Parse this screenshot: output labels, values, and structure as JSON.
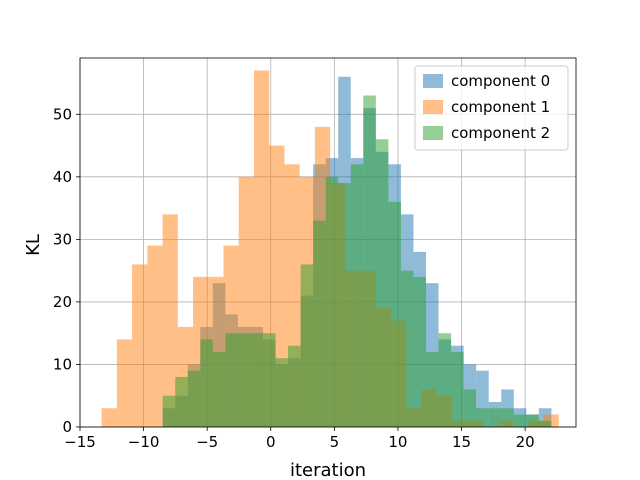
{
  "chart_data": {
    "type": "histogram",
    "xlabel": "iteration",
    "ylabel": "KL",
    "xlim": [
      -15,
      24
    ],
    "ylim": [
      0,
      59
    ],
    "x_ticks": [
      -15,
      -10,
      -5,
      0,
      5,
      10,
      15,
      20
    ],
    "x_tick_labels": [
      "−15",
      "−10",
      "−5",
      "0",
      "5",
      "10",
      "15",
      "20"
    ],
    "y_ticks": [
      0,
      10,
      20,
      30,
      40,
      50
    ],
    "y_tick_labels": [
      "0",
      "10",
      "20",
      "30",
      "40",
      "50"
    ],
    "grid": true,
    "legend_position": "top-right",
    "alpha": 0.5,
    "series": [
      {
        "name": "component 0",
        "color": "#1f77b4",
        "bin_start": -8.5,
        "bin_width": 0.986,
        "values": [
          3,
          5,
          10,
          16,
          23,
          18,
          16,
          16,
          14,
          10,
          11,
          21,
          42,
          43,
          56,
          43,
          51,
          44,
          42,
          34,
          28,
          23,
          14,
          13,
          10,
          9,
          4,
          6,
          3,
          2,
          3
        ]
      },
      {
        "name": "component 1",
        "color": "#ff7f0e",
        "bin_start": -13.3,
        "bin_width": 1.198,
        "values": [
          3,
          14,
          26,
          29,
          34,
          16,
          24,
          24,
          29,
          40,
          57,
          45,
          42,
          40,
          48,
          39,
          25,
          25,
          19,
          17,
          3,
          6,
          5,
          1,
          1,
          0,
          1,
          0,
          1,
          2
        ]
      },
      {
        "name": "component 2",
        "color": "#2ca02c",
        "bin_start": -8.5,
        "bin_width": 0.986,
        "values": [
          5,
          8,
          9,
          14,
          12,
          15,
          15,
          15,
          15,
          11,
          13,
          26,
          33,
          40,
          39,
          42,
          53,
          46,
          36,
          25,
          24,
          12,
          15,
          12,
          6,
          3,
          3,
          3,
          2,
          2,
          1
        ]
      }
    ]
  }
}
